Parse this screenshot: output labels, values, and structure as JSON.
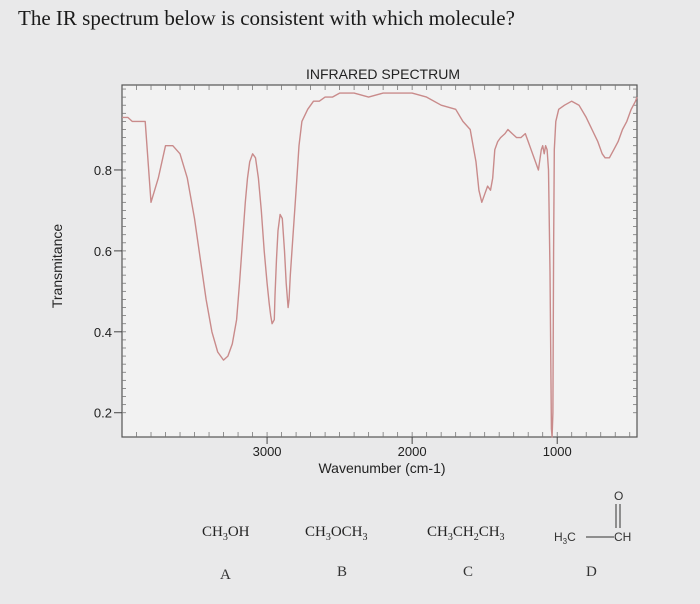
{
  "question": "The IR spectrum below is consistent with which molecule?",
  "chart_data": {
    "type": "line",
    "title": "INFRARED SPECTRUM",
    "xlabel": "Wavenumber (cm-1)",
    "ylabel": "Transmitance",
    "x_ticks": [
      "3000",
      "2000",
      "1000"
    ],
    "y_ticks": [
      "0.8",
      "0.6",
      "0.4",
      "0.2"
    ],
    "xlim": [
      4000,
      450
    ],
    "ylim": [
      0.14,
      1.01
    ],
    "grid": false,
    "series": [
      {
        "line_color": "#c98b8b",
        "x": [
          4000,
          3960,
          3930,
          3900,
          3870,
          3840,
          3800,
          3750,
          3700,
          3650,
          3600,
          3550,
          3500,
          3460,
          3420,
          3380,
          3340,
          3300,
          3270,
          3240,
          3210,
          3190,
          3170,
          3150,
          3135,
          3120,
          3100,
          3080,
          3060,
          3040,
          3020,
          3000,
          2985,
          2975,
          2965,
          2950,
          2945,
          2935,
          2925,
          2910,
          2895,
          2880,
          2868,
          2855,
          2848,
          2840,
          2825,
          2800,
          2780,
          2760,
          2720,
          2680,
          2640,
          2600,
          2550,
          2500,
          2400,
          2300,
          2200,
          2100,
          2000,
          1900,
          1800,
          1700,
          1650,
          1600,
          1580,
          1560,
          1540,
          1520,
          1500,
          1480,
          1460,
          1445,
          1430,
          1410,
          1390,
          1360,
          1340,
          1310,
          1280,
          1250,
          1220,
          1200,
          1180,
          1150,
          1130,
          1110,
          1100,
          1090,
          1080,
          1070,
          1060,
          1050,
          1040,
          1035,
          1030,
          1025,
          1020,
          1010,
          990,
          950,
          900,
          850,
          800,
          760,
          720,
          690,
          670,
          640,
          610,
          580,
          550,
          520,
          490,
          460,
          450
        ],
        "y": [
          0.93,
          0.93,
          0.92,
          0.92,
          0.92,
          0.92,
          0.72,
          0.78,
          0.86,
          0.86,
          0.84,
          0.78,
          0.68,
          0.58,
          0.48,
          0.4,
          0.35,
          0.33,
          0.34,
          0.37,
          0.43,
          0.52,
          0.62,
          0.72,
          0.78,
          0.82,
          0.84,
          0.83,
          0.78,
          0.7,
          0.6,
          0.52,
          0.47,
          0.44,
          0.42,
          0.43,
          0.49,
          0.58,
          0.65,
          0.69,
          0.68,
          0.6,
          0.52,
          0.46,
          0.48,
          0.54,
          0.62,
          0.75,
          0.86,
          0.92,
          0.95,
          0.97,
          0.97,
          0.98,
          0.98,
          0.99,
          0.99,
          0.98,
          0.99,
          0.99,
          0.99,
          0.98,
          0.96,
          0.95,
          0.92,
          0.9,
          0.86,
          0.82,
          0.75,
          0.72,
          0.74,
          0.76,
          0.75,
          0.78,
          0.85,
          0.87,
          0.88,
          0.89,
          0.9,
          0.89,
          0.88,
          0.88,
          0.89,
          0.87,
          0.85,
          0.82,
          0.8,
          0.85,
          0.86,
          0.84,
          0.86,
          0.85,
          0.8,
          0.55,
          0.16,
          0.14,
          0.2,
          0.6,
          0.85,
          0.92,
          0.95,
          0.96,
          0.97,
          0.96,
          0.93,
          0.9,
          0.87,
          0.84,
          0.83,
          0.83,
          0.85,
          0.87,
          0.9,
          0.92,
          0.95,
          0.97,
          0.98
        ]
      }
    ]
  },
  "options": [
    {
      "letter": "A",
      "formula": {
        "parts": [
          "CH",
          "3",
          "OH"
        ]
      }
    },
    {
      "letter": "B",
      "formula": {
        "parts": [
          "CH",
          "3",
          "OCH",
          "3"
        ]
      }
    },
    {
      "letter": "C",
      "formula": {
        "parts": [
          "CH",
          "3",
          "CH",
          "2",
          "CH",
          "3"
        ]
      }
    },
    {
      "letter": "D",
      "structure": {
        "left_group": "H",
        "left_sub": "3",
        "left_tail": "C",
        "oxygen": "O",
        "right_group": "CH"
      }
    }
  ]
}
